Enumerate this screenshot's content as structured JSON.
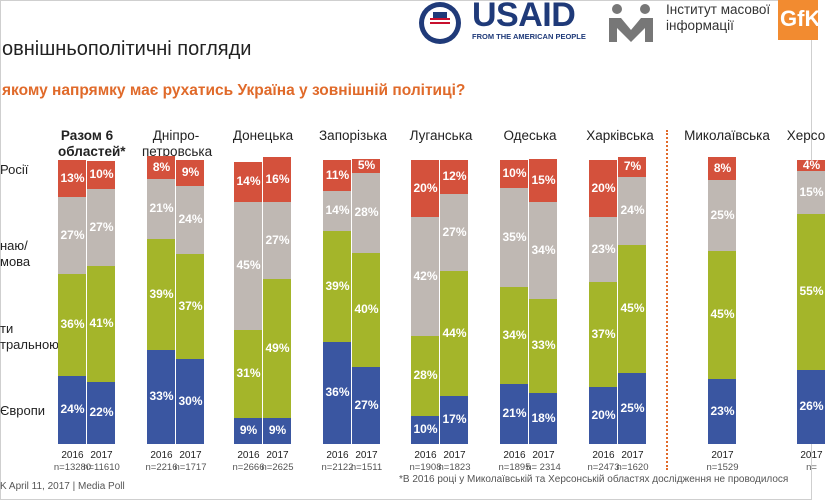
{
  "header": {
    "title": "овнішньополітичні погляди",
    "question": "якому напрямку має рухатись Україна у зовнішній політиці?"
  },
  "logos": {
    "usaid_name": "USAID",
    "usaid_tagline": "FROM THE AMERICAN PEOPLE",
    "imi_line1": "Інститут масової",
    "imi_line2": "інформації",
    "gfk": "GfK"
  },
  "axis_labels": [
    "Росії",
    "наю/\nмова",
    "ти\nтральною",
    "Європи"
  ],
  "footer": {
    "source": "K April 11, 2017 | Media Poll",
    "note": "*В 2016 році у Миколаївській та Херсонській областях дослідження не проводилося"
  },
  "colors": {
    "russia": "#d4513c",
    "undecided": "#bfb8b3",
    "neutral": "#a4b52a",
    "europe": "#3a56a1"
  },
  "chart_data": {
    "type": "bar",
    "stacked": true,
    "series_order": [
      "europe",
      "neutral",
      "undecided",
      "russia"
    ],
    "groups": [
      {
        "name": "Разом 6\nобластей*",
        "total": true,
        "bars": [
          {
            "year": "2016",
            "n": "n=13280",
            "europe": 24,
            "neutral": 36,
            "undecided": 27,
            "russia": 13
          },
          {
            "year": "2017",
            "n": "n=11610",
            "europe": 22,
            "neutral": 41,
            "undecided": 27,
            "russia": 10
          }
        ]
      },
      {
        "name": "Дніпро-\nпетровська",
        "bars": [
          {
            "year": "2016",
            "n": "n=2216",
            "europe": 33,
            "neutral": 39,
            "undecided": 21,
            "russia": 8
          },
          {
            "year": "2017",
            "n": "n=1717",
            "europe": 30,
            "neutral": 37,
            "undecided": 24,
            "russia": 9
          }
        ]
      },
      {
        "name": "Донецька",
        "bars": [
          {
            "year": "2016",
            "n": "n=2666",
            "europe": 9,
            "neutral": 31,
            "undecided": 45,
            "russia": 14
          },
          {
            "year": "2017",
            "n": "n=2625",
            "europe": 9,
            "neutral": 49,
            "undecided": 27,
            "russia": 16
          }
        ]
      },
      {
        "name": "Запорізька",
        "bars": [
          {
            "year": "2016",
            "n": "n=2122",
            "europe": 36,
            "neutral": 39,
            "undecided": 14,
            "russia": 11
          },
          {
            "year": "2017",
            "n": "n=1511",
            "europe": 27,
            "neutral": 40,
            "undecided": 28,
            "russia": 5
          }
        ]
      },
      {
        "name": "Луганська",
        "bars": [
          {
            "year": "2016",
            "n": "n=1908",
            "europe": 10,
            "neutral": 28,
            "undecided": 42,
            "russia": 20
          },
          {
            "year": "2017",
            "n": "n=1823",
            "europe": 17,
            "neutral": 44,
            "undecided": 27,
            "russia": 12
          }
        ]
      },
      {
        "name": "Одеська",
        "bars": [
          {
            "year": "2016",
            "n": "n=1895",
            "europe": 21,
            "neutral": 34,
            "undecided": 35,
            "russia": 10
          },
          {
            "year": "2017",
            "n": "n= 2314",
            "europe": 18,
            "neutral": 33,
            "undecided": 34,
            "russia": 15
          }
        ]
      },
      {
        "name": "Харківська",
        "bars": [
          {
            "year": "2016",
            "n": "n=2473",
            "europe": 20,
            "neutral": 37,
            "undecided": 23,
            "russia": 20
          },
          {
            "year": "2017",
            "n": "n=1620",
            "europe": 25,
            "neutral": 45,
            "undecided": 24,
            "russia": 7
          }
        ]
      },
      {
        "name": "Миколаївська",
        "bars": [
          {
            "year": "2017",
            "n": "n=1529",
            "europe": 23,
            "neutral": 45,
            "undecided": 25,
            "russia": 8
          }
        ]
      },
      {
        "name": "Херсо",
        "bars": [
          {
            "year": "2017",
            "n": "n=",
            "europe": 26,
            "neutral": 55,
            "undecided": 15,
            "russia": 4
          }
        ]
      }
    ]
  }
}
